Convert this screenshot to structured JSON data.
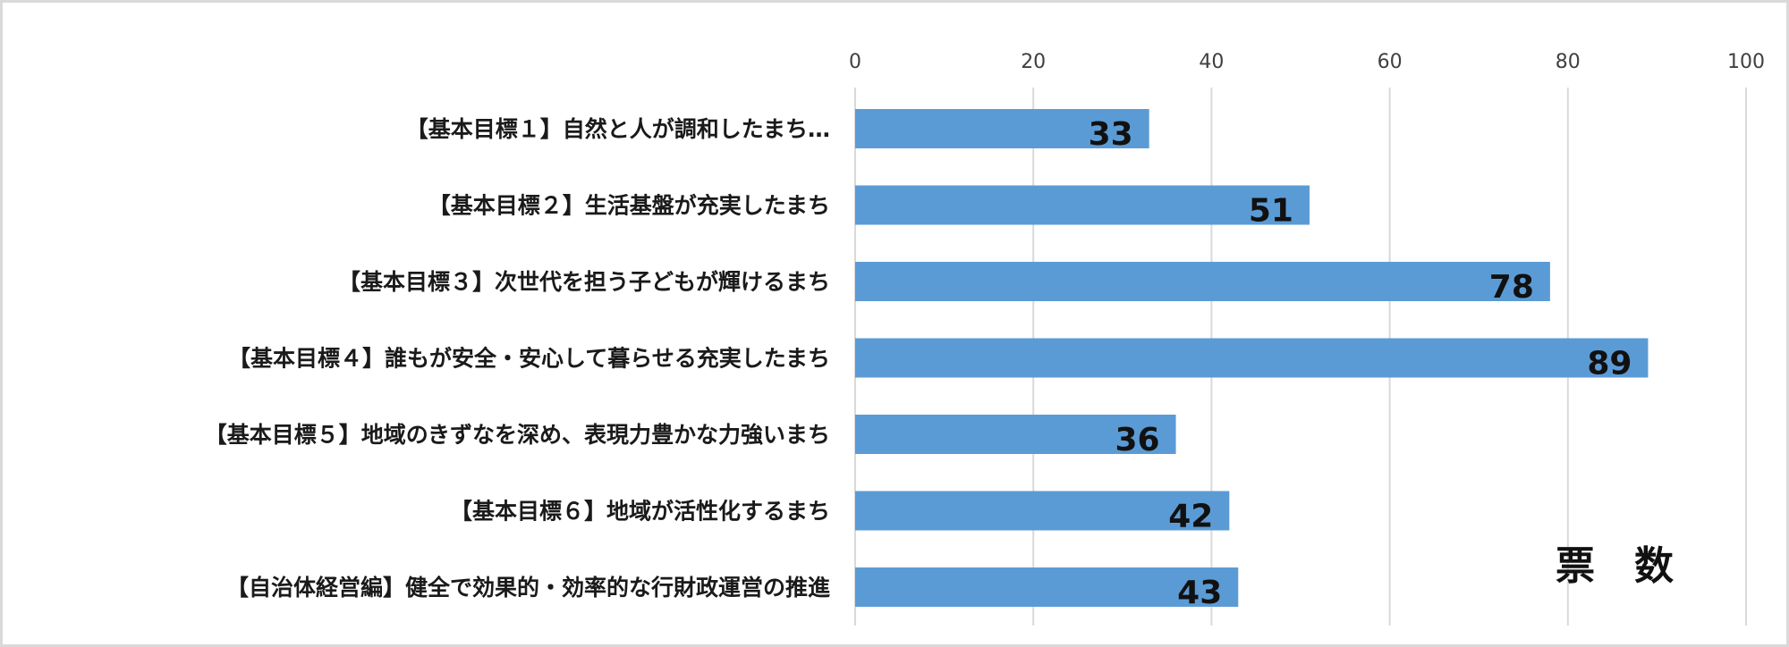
{
  "chart_data": {
    "type": "bar",
    "orientation": "horizontal",
    "categories": [
      "【基本目標１】自然と人が調和したまち…",
      "【基本目標２】生活基盤が充実したまち",
      "【基本目標３】次世代を担う子どもが輝けるまち",
      "【基本目標４】誰もが安全・安心して暮らせる充実したまち",
      "【基本目標５】地域のきずなを深め、表現力豊かな力強いまち",
      "【基本目標６】地域が活性化するまち",
      "【自治体経営編】健全で効果的・効率的な行財政運営の推進"
    ],
    "values": [
      33,
      51,
      78,
      89,
      36,
      42,
      43
    ],
    "data_labels": [
      "33",
      "51",
      "78",
      "89",
      "36",
      "42",
      "43"
    ],
    "xlim": [
      0,
      100
    ],
    "x_ticks": [
      "0",
      "20",
      "40",
      "60",
      "80",
      "100"
    ],
    "x_axis_position": "top",
    "annotation": "票　数",
    "grid": true,
    "legend": "none",
    "bar_color": "#5b9bd5",
    "grid_color": "#d9d9d9"
  }
}
